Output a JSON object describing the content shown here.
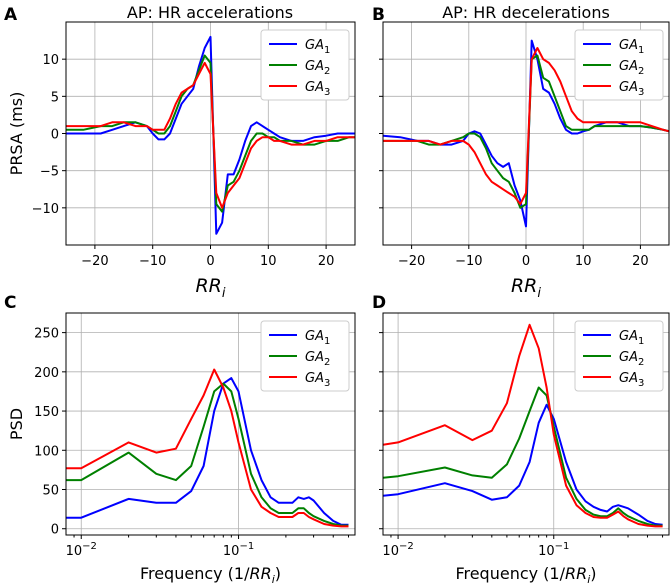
{
  "chart_data": [
    {
      "id": "A",
      "letter": "A",
      "type": "line",
      "title": "AP: HR accelerations",
      "xlabel": "RR",
      "xlabel_sub": "i",
      "ylabel": "PRSA (ms)",
      "xscale": "linear",
      "xlim": [
        -25,
        25
      ],
      "ylim": [
        -15,
        15
      ],
      "xticks": [
        -20,
        -10,
        0,
        10,
        20
      ],
      "yticks": [
        -10,
        -5,
        0,
        5,
        10
      ],
      "xticklabels": [
        "−20",
        "−10",
        "0",
        "10",
        "20"
      ],
      "yticklabels": [
        "−10",
        "−5",
        "0",
        "5",
        "10"
      ],
      "legend_position": "top-right",
      "series": [
        {
          "name": "GA",
          "sub": "1",
          "color": "#0000ff",
          "x": [
            -25,
            -22,
            -19,
            -17,
            -15,
            -13,
            -11,
            -10,
            -9,
            -8,
            -7,
            -6,
            -5,
            -4,
            -3,
            -2,
            -1,
            0,
            1,
            2,
            3,
            4,
            5,
            6,
            7,
            8,
            9,
            10,
            11,
            12,
            14,
            16,
            18,
            20,
            22,
            24,
            25
          ],
          "y": [
            0,
            0,
            0,
            0.5,
            1,
            1.5,
            1,
            0,
            -0.8,
            -0.8,
            0,
            2,
            4,
            5,
            6,
            9,
            11.5,
            13,
            -13.5,
            -12,
            -5.5,
            -5.5,
            -3.5,
            -1,
            1,
            1.5,
            1,
            0.5,
            0,
            -0.5,
            -1,
            -1,
            -0.5,
            -0.3,
            0,
            0,
            0
          ]
        },
        {
          "name": "GA",
          "sub": "2",
          "color": "#008000",
          "x": [
            -25,
            -22,
            -19,
            -17,
            -15,
            -13,
            -11,
            -10,
            -9,
            -8,
            -7,
            -6,
            -5,
            -4,
            -3,
            -2,
            -1,
            0,
            1,
            2,
            3,
            4,
            5,
            6,
            7,
            8,
            9,
            10,
            11,
            12,
            14,
            16,
            18,
            20,
            22,
            24,
            25
          ],
          "y": [
            0.5,
            0.5,
            1,
            1,
            1.5,
            1.5,
            1,
            0.5,
            0,
            0,
            1,
            3,
            5,
            6,
            6.5,
            8.5,
            10.5,
            9.5,
            -9.5,
            -10.5,
            -7,
            -6.5,
            -5,
            -3,
            -1,
            0,
            0,
            -0.5,
            -0.5,
            -1,
            -1,
            -1.5,
            -1.5,
            -1,
            -1,
            -0.5,
            -0.5
          ]
        },
        {
          "name": "GA",
          "sub": "3",
          "color": "#ff0000",
          "x": [
            -25,
            -22,
            -19,
            -17,
            -15,
            -13,
            -11,
            -10,
            -9,
            -8,
            -7,
            -6,
            -5,
            -4,
            -3,
            -2,
            -1,
            0,
            1,
            2,
            3,
            4,
            5,
            6,
            7,
            8,
            9,
            10,
            11,
            12,
            14,
            16,
            18,
            20,
            22,
            24,
            25
          ],
          "y": [
            1,
            1,
            1,
            1.5,
            1.5,
            1,
            1,
            0.5,
            0.5,
            0.5,
            2,
            4,
            5.5,
            6,
            6.5,
            8,
            9.5,
            8,
            -8,
            -10,
            -8,
            -7,
            -6,
            -4,
            -2,
            -1,
            -0.5,
            -0.5,
            -1,
            -1,
            -1.5,
            -1.5,
            -1,
            -1,
            -0.5,
            -0.5,
            -0.5
          ]
        }
      ]
    },
    {
      "id": "B",
      "letter": "B",
      "type": "line",
      "title": "AP: HR decelerations",
      "xlabel": "RR",
      "xlabel_sub": "i",
      "ylabel": "",
      "xscale": "linear",
      "xlim": [
        -25,
        25
      ],
      "ylim": [
        -15,
        15
      ],
      "xticks": [
        -20,
        -10,
        0,
        10,
        20
      ],
      "yticks": [
        -10,
        -5,
        0,
        5,
        10
      ],
      "xticklabels": [
        "−20",
        "−10",
        "0",
        "10",
        "20"
      ],
      "yticklabels": [],
      "legend_position": "top-right",
      "series": [
        {
          "name": "GA",
          "sub": "1",
          "color": "#0000ff",
          "x": [
            -25,
            -22,
            -19,
            -17,
            -15,
            -13,
            -11,
            -10,
            -9,
            -8,
            -7,
            -6,
            -5,
            -4,
            -3,
            -2,
            -1,
            0,
            1,
            2,
            3,
            4,
            5,
            6,
            7,
            8,
            9,
            10,
            11,
            12,
            14,
            16,
            18,
            20,
            22,
            24,
            25
          ],
          "y": [
            -0.3,
            -0.5,
            -1,
            -1,
            -1.5,
            -1.5,
            -1,
            0,
            0.3,
            0,
            -1.5,
            -3,
            -4,
            -4.5,
            -4,
            -7,
            -9,
            -12.5,
            12.5,
            10,
            6,
            5.5,
            4,
            2,
            0.5,
            0,
            0,
            0.3,
            0.5,
            1,
            1.5,
            1.5,
            1,
            1,
            0.8,
            0.5,
            0.3
          ]
        },
        {
          "name": "GA",
          "sub": "2",
          "color": "#008000",
          "x": [
            -25,
            -22,
            -19,
            -17,
            -15,
            -13,
            -11,
            -10,
            -9,
            -8,
            -7,
            -6,
            -5,
            -4,
            -3,
            -2,
            -1,
            0,
            1,
            2,
            3,
            4,
            5,
            6,
            7,
            8,
            9,
            10,
            11,
            12,
            14,
            16,
            18,
            20,
            22,
            24,
            25
          ],
          "y": [
            -1,
            -1,
            -1,
            -1.5,
            -1.5,
            -1,
            -0.5,
            0,
            0,
            -0.5,
            -2,
            -4,
            -5,
            -6,
            -6.5,
            -8,
            -10,
            -9.5,
            10,
            10.5,
            7.5,
            7,
            5,
            3,
            1,
            0.5,
            0.5,
            0.5,
            0.5,
            1,
            1,
            1,
            1,
            1,
            0.8,
            0.5,
            0.3
          ]
        },
        {
          "name": "GA",
          "sub": "3",
          "color": "#ff0000",
          "x": [
            -25,
            -22,
            -19,
            -17,
            -15,
            -13,
            -11,
            -10,
            -9,
            -8,
            -7,
            -6,
            -5,
            -4,
            -3,
            -2,
            -1,
            0,
            1,
            2,
            3,
            4,
            5,
            6,
            7,
            8,
            9,
            10,
            11,
            12,
            14,
            16,
            18,
            20,
            22,
            24,
            25
          ],
          "y": [
            -1,
            -1,
            -1,
            -1,
            -1.5,
            -1,
            -1,
            -1.5,
            -2.5,
            -4,
            -5.5,
            -6.5,
            -7,
            -7.5,
            -8,
            -8.5,
            -9.5,
            -8,
            10,
            11.5,
            10,
            9.5,
            8.5,
            7,
            5,
            3,
            2,
            1.5,
            1.5,
            1.5,
            1.5,
            1.5,
            1.5,
            1.5,
            1,
            0.5,
            0.3
          ]
        }
      ]
    },
    {
      "id": "C",
      "letter": "C",
      "type": "line",
      "title": "",
      "xlabel": "Frequency (1/",
      "xlabel_tail": "RR",
      "xlabel_sub": "i",
      "xlabel_close": ")",
      "ylabel": "PSD",
      "xscale": "log",
      "xlim": [
        0.008,
        0.55
      ],
      "ylim": [
        -8,
        275
      ],
      "xticks": [
        0.01,
        0.1
      ],
      "xticklabels_base": "10",
      "xticklabels_exp": [
        "−2",
        "−1"
      ],
      "yticks": [
        0,
        50,
        100,
        150,
        200,
        250
      ],
      "yticklabels": [
        "0",
        "50",
        "100",
        "150",
        "200",
        "250"
      ],
      "legend_position": "top-right",
      "series": [
        {
          "name": "GA",
          "sub": "1",
          "color": "#0000ff",
          "x": [
            0.008,
            0.01,
            0.02,
            0.03,
            0.04,
            0.05,
            0.06,
            0.07,
            0.08,
            0.09,
            0.1,
            0.12,
            0.14,
            0.16,
            0.18,
            0.2,
            0.22,
            0.24,
            0.26,
            0.28,
            0.3,
            0.35,
            0.4,
            0.45,
            0.5
          ],
          "y": [
            14,
            14,
            38,
            33,
            33,
            48,
            80,
            150,
            185,
            192,
            175,
            100,
            62,
            40,
            33,
            33,
            33,
            40,
            38,
            40,
            36,
            20,
            10,
            5,
            5
          ]
        },
        {
          "name": "GA",
          "sub": "2",
          "color": "#008000",
          "x": [
            0.008,
            0.01,
            0.02,
            0.03,
            0.04,
            0.05,
            0.06,
            0.07,
            0.08,
            0.09,
            0.1,
            0.12,
            0.14,
            0.16,
            0.18,
            0.2,
            0.22,
            0.24,
            0.26,
            0.28,
            0.3,
            0.35,
            0.4,
            0.45,
            0.5
          ],
          "y": [
            62,
            62,
            97,
            70,
            62,
            80,
            130,
            175,
            185,
            175,
            140,
            70,
            40,
            26,
            20,
            20,
            20,
            26,
            26,
            20,
            16,
            10,
            6,
            4,
            4
          ]
        },
        {
          "name": "GA",
          "sub": "3",
          "color": "#ff0000",
          "x": [
            0.008,
            0.01,
            0.02,
            0.03,
            0.04,
            0.05,
            0.06,
            0.07,
            0.08,
            0.09,
            0.1,
            0.12,
            0.14,
            0.16,
            0.18,
            0.2,
            0.22,
            0.24,
            0.26,
            0.28,
            0.3,
            0.35,
            0.4,
            0.45,
            0.5
          ],
          "y": [
            77,
            77,
            110,
            97,
            102,
            140,
            170,
            203,
            180,
            150,
            110,
            50,
            28,
            20,
            15,
            15,
            15,
            20,
            20,
            15,
            12,
            6,
            4,
            3,
            3
          ]
        }
      ]
    },
    {
      "id": "D",
      "letter": "D",
      "type": "line",
      "title": "",
      "xlabel": "Frequency (1/",
      "xlabel_tail": "RR",
      "xlabel_sub": "i",
      "xlabel_close": ")",
      "ylabel": "",
      "xscale": "log",
      "xlim": [
        0.008,
        0.55
      ],
      "ylim": [
        -8,
        275
      ],
      "xticks": [
        0.01,
        0.1
      ],
      "xticklabels_base": "10",
      "xticklabels_exp": [
        "−2",
        "−1"
      ],
      "yticks": [
        0,
        50,
        100,
        150,
        200,
        250
      ],
      "yticklabels": [],
      "legend_position": "top-right",
      "series": [
        {
          "name": "GA",
          "sub": "1",
          "color": "#0000ff",
          "x": [
            0.008,
            0.01,
            0.02,
            0.03,
            0.04,
            0.05,
            0.06,
            0.07,
            0.08,
            0.09,
            0.1,
            0.12,
            0.14,
            0.16,
            0.18,
            0.2,
            0.22,
            0.24,
            0.26,
            0.28,
            0.3,
            0.35,
            0.4,
            0.45,
            0.5
          ],
          "y": [
            42,
            44,
            58,
            48,
            37,
            40,
            55,
            85,
            135,
            158,
            140,
            85,
            50,
            35,
            28,
            24,
            22,
            28,
            30,
            28,
            26,
            18,
            10,
            6,
            5
          ]
        },
        {
          "name": "GA",
          "sub": "2",
          "color": "#008000",
          "x": [
            0.008,
            0.01,
            0.02,
            0.03,
            0.04,
            0.05,
            0.06,
            0.07,
            0.08,
            0.09,
            0.1,
            0.12,
            0.14,
            0.16,
            0.18,
            0.2,
            0.22,
            0.24,
            0.26,
            0.28,
            0.3,
            0.35,
            0.4,
            0.45,
            0.5
          ],
          "y": [
            65,
            67,
            78,
            68,
            65,
            82,
            115,
            150,
            180,
            170,
            130,
            65,
            38,
            24,
            18,
            16,
            16,
            20,
            26,
            20,
            16,
            10,
            6,
            4,
            4
          ]
        },
        {
          "name": "GA",
          "sub": "3",
          "color": "#ff0000",
          "x": [
            0.008,
            0.01,
            0.02,
            0.03,
            0.04,
            0.05,
            0.06,
            0.07,
            0.08,
            0.09,
            0.1,
            0.12,
            0.14,
            0.16,
            0.18,
            0.2,
            0.22,
            0.24,
            0.26,
            0.28,
            0.3,
            0.35,
            0.4,
            0.45,
            0.5
          ],
          "y": [
            107,
            110,
            132,
            113,
            125,
            160,
            220,
            260,
            230,
            180,
            120,
            55,
            30,
            20,
            15,
            14,
            14,
            18,
            22,
            16,
            12,
            6,
            4,
            3,
            3
          ]
        }
      ]
    }
  ]
}
